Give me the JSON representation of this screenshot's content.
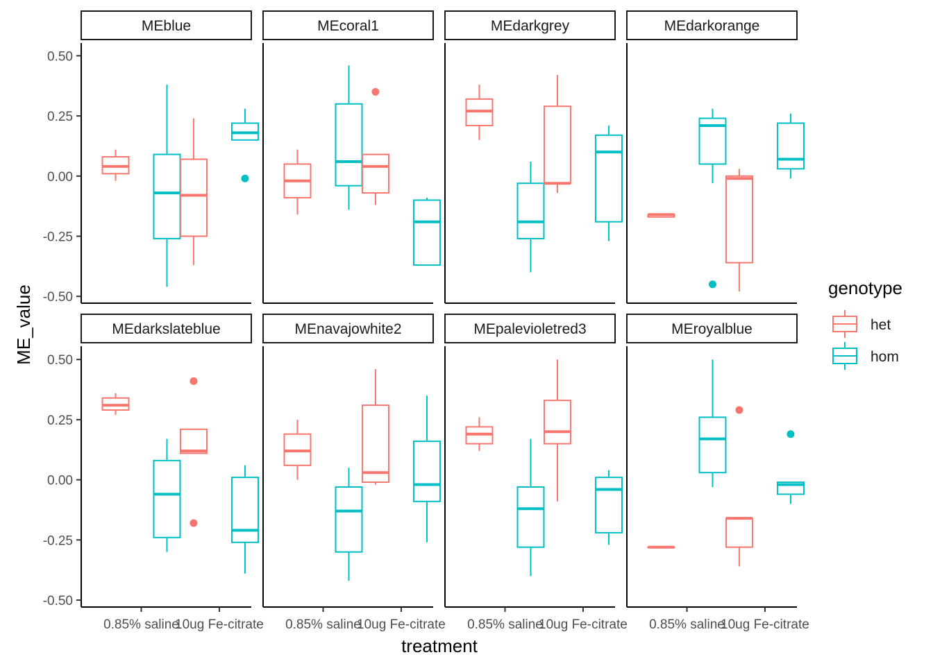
{
  "chart_data": {
    "type": "boxplot",
    "xlabel": "treatment",
    "ylabel": "ME_value",
    "categories": [
      "0.85% saline",
      "10ug Fe-citrate"
    ],
    "y_ticks": [
      0.5,
      0.25,
      0.0,
      -0.25,
      -0.5
    ],
    "y_tick_labels": [
      "0.50",
      "0.25",
      "0.00",
      "-0.25",
      "-0.50"
    ],
    "ylim": [
      -0.53,
      0.55
    ],
    "grid": false,
    "legend": {
      "title": "genotype",
      "position": "right",
      "entries": [
        {
          "name": "het",
          "color": "#F8766D"
        },
        {
          "name": "hom",
          "color": "#00BFC4"
        }
      ]
    },
    "facets": [
      {
        "label": "MEblue",
        "boxes": [
          {
            "category": "0.85% saline",
            "genotype": "het",
            "min": -0.02,
            "q1": 0.01,
            "median": 0.04,
            "q3": 0.08,
            "max": 0.11,
            "outliers": []
          },
          {
            "category": "0.85% saline",
            "genotype": "hom",
            "min": -0.46,
            "q1": -0.26,
            "median": -0.07,
            "q3": 0.09,
            "max": 0.38,
            "outliers": []
          },
          {
            "category": "10ug Fe-citrate",
            "genotype": "het",
            "min": -0.37,
            "q1": -0.25,
            "median": -0.08,
            "q3": 0.07,
            "max": 0.24,
            "outliers": []
          },
          {
            "category": "10ug Fe-citrate",
            "genotype": "hom",
            "min": 0.15,
            "q1": 0.15,
            "median": 0.18,
            "q3": 0.22,
            "max": 0.28,
            "outliers": [
              -0.01
            ]
          }
        ]
      },
      {
        "label": "MEcoral1",
        "boxes": [
          {
            "category": "0.85% saline",
            "genotype": "het",
            "min": -0.16,
            "q1": -0.09,
            "median": -0.02,
            "q3": 0.05,
            "max": 0.11,
            "outliers": []
          },
          {
            "category": "0.85% saline",
            "genotype": "hom",
            "min": -0.14,
            "q1": -0.04,
            "median": 0.06,
            "q3": 0.3,
            "max": 0.46,
            "outliers": []
          },
          {
            "category": "10ug Fe-citrate",
            "genotype": "het",
            "min": -0.12,
            "q1": -0.07,
            "median": 0.04,
            "q3": 0.09,
            "max": 0.09,
            "outliers": [
              0.35
            ]
          },
          {
            "category": "10ug Fe-citrate",
            "genotype": "hom",
            "min": -0.37,
            "q1": -0.37,
            "median": -0.19,
            "q3": -0.1,
            "max": -0.09,
            "outliers": []
          }
        ]
      },
      {
        "label": "MEdarkgrey",
        "boxes": [
          {
            "category": "0.85% saline",
            "genotype": "het",
            "min": 0.15,
            "q1": 0.21,
            "median": 0.27,
            "q3": 0.32,
            "max": 0.38,
            "outliers": []
          },
          {
            "category": "0.85% saline",
            "genotype": "hom",
            "min": -0.4,
            "q1": -0.26,
            "median": -0.19,
            "q3": -0.03,
            "max": 0.06,
            "outliers": []
          },
          {
            "category": "10ug Fe-citrate",
            "genotype": "het",
            "min": -0.07,
            "q1": -0.03,
            "median": -0.03,
            "q3": 0.29,
            "max": 0.42,
            "outliers": []
          },
          {
            "category": "10ug Fe-citrate",
            "genotype": "hom",
            "min": -0.27,
            "q1": -0.19,
            "median": 0.1,
            "q3": 0.17,
            "max": 0.21,
            "outliers": []
          }
        ]
      },
      {
        "label": "MEdarkorange",
        "boxes": [
          {
            "category": "0.85% saline",
            "genotype": "het",
            "min": -0.17,
            "q1": -0.17,
            "median": -0.16,
            "q3": -0.16,
            "max": -0.16,
            "outliers": []
          },
          {
            "category": "0.85% saline",
            "genotype": "hom",
            "min": -0.03,
            "q1": 0.05,
            "median": 0.21,
            "q3": 0.24,
            "max": 0.28,
            "outliers": [
              -0.45
            ]
          },
          {
            "category": "10ug Fe-citrate",
            "genotype": "het",
            "min": -0.48,
            "q1": -0.36,
            "median": -0.01,
            "q3": 0.0,
            "max": 0.03,
            "outliers": []
          },
          {
            "category": "10ug Fe-citrate",
            "genotype": "hom",
            "min": -0.01,
            "q1": 0.03,
            "median": 0.07,
            "q3": 0.22,
            "max": 0.26,
            "outliers": []
          }
        ]
      },
      {
        "label": "MEdarkslateblue",
        "boxes": [
          {
            "category": "0.85% saline",
            "genotype": "het",
            "min": 0.27,
            "q1": 0.29,
            "median": 0.31,
            "q3": 0.34,
            "max": 0.36,
            "outliers": []
          },
          {
            "category": "0.85% saline",
            "genotype": "hom",
            "min": -0.3,
            "q1": -0.24,
            "median": -0.06,
            "q3": 0.08,
            "max": 0.17,
            "outliers": []
          },
          {
            "category": "10ug Fe-citrate",
            "genotype": "het",
            "min": 0.11,
            "q1": 0.11,
            "median": 0.12,
            "q3": 0.21,
            "max": 0.21,
            "outliers": [
              0.41,
              -0.18
            ]
          },
          {
            "category": "10ug Fe-citrate",
            "genotype": "hom",
            "min": -0.39,
            "q1": -0.26,
            "median": -0.21,
            "q3": 0.01,
            "max": 0.06,
            "outliers": []
          }
        ]
      },
      {
        "label": "MEnavajowhite2",
        "boxes": [
          {
            "category": "0.85% saline",
            "genotype": "het",
            "min": 0.0,
            "q1": 0.06,
            "median": 0.12,
            "q3": 0.19,
            "max": 0.25,
            "outliers": []
          },
          {
            "category": "0.85% saline",
            "genotype": "hom",
            "min": -0.42,
            "q1": -0.3,
            "median": -0.13,
            "q3": -0.03,
            "max": 0.05,
            "outliers": []
          },
          {
            "category": "10ug Fe-citrate",
            "genotype": "het",
            "min": -0.02,
            "q1": -0.01,
            "median": 0.03,
            "q3": 0.31,
            "max": 0.46,
            "outliers": []
          },
          {
            "category": "10ug Fe-citrate",
            "genotype": "hom",
            "min": -0.26,
            "q1": -0.09,
            "median": -0.02,
            "q3": 0.16,
            "max": 0.35,
            "outliers": []
          }
        ]
      },
      {
        "label": "MEpalevioletred3",
        "boxes": [
          {
            "category": "0.85% saline",
            "genotype": "het",
            "min": 0.12,
            "q1": 0.15,
            "median": 0.19,
            "q3": 0.22,
            "max": 0.26,
            "outliers": []
          },
          {
            "category": "0.85% saline",
            "genotype": "hom",
            "min": -0.4,
            "q1": -0.28,
            "median": -0.12,
            "q3": -0.03,
            "max": 0.17,
            "outliers": []
          },
          {
            "category": "10ug Fe-citrate",
            "genotype": "het",
            "min": -0.09,
            "q1": 0.15,
            "median": 0.2,
            "q3": 0.33,
            "max": 0.5,
            "outliers": []
          },
          {
            "category": "10ug Fe-citrate",
            "genotype": "hom",
            "min": -0.27,
            "q1": -0.22,
            "median": -0.04,
            "q3": 0.01,
            "max": 0.04,
            "outliers": []
          }
        ]
      },
      {
        "label": "MEroyalblue",
        "boxes": [
          {
            "category": "0.85% saline",
            "genotype": "het",
            "min": -0.28,
            "q1": -0.28,
            "median": -0.28,
            "q3": -0.28,
            "max": -0.28,
            "outliers": []
          },
          {
            "category": "0.85% saline",
            "genotype": "hom",
            "min": -0.03,
            "q1": 0.03,
            "median": 0.17,
            "q3": 0.26,
            "max": 0.5,
            "outliers": []
          },
          {
            "category": "10ug Fe-citrate",
            "genotype": "het",
            "min": -0.36,
            "q1": -0.28,
            "median": -0.16,
            "q3": -0.16,
            "max": -0.16,
            "outliers": [
              0.29
            ]
          },
          {
            "category": "10ug Fe-citrate",
            "genotype": "hom",
            "min": -0.1,
            "q1": -0.06,
            "median": -0.02,
            "q3": -0.01,
            "max": -0.01,
            "outliers": [
              0.19
            ]
          }
        ]
      }
    ]
  }
}
